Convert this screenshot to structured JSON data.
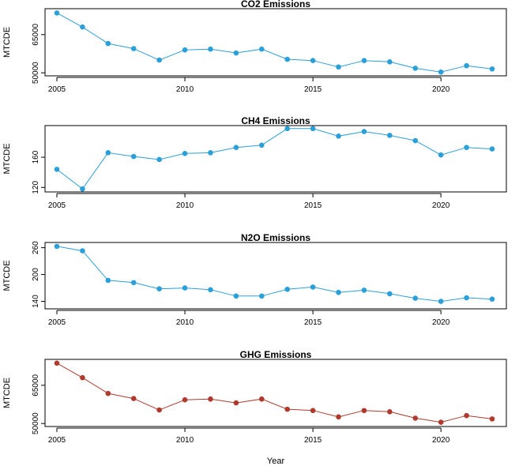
{
  "figure": {
    "xlabel": "Year"
  },
  "chart_data": [
    {
      "type": "line",
      "title": "CO2 Emissions",
      "xlabel": "",
      "ylabel": "MTCDE",
      "color": "#2b9fd8",
      "xlim": [
        2005,
        2022
      ],
      "ylim": [
        50000,
        74000
      ],
      "xticks": [
        2005,
        2010,
        2015,
        2020
      ],
      "yticks": [
        50000,
        65000
      ],
      "grid": false,
      "x": [
        2005,
        2006,
        2007,
        2008,
        2009,
        2010,
        2011,
        2012,
        2013,
        2014,
        2015,
        2016,
        2017,
        2018,
        2019,
        2020,
        2021,
        2022
      ],
      "values": [
        73500,
        68000,
        61500,
        59500,
        55000,
        59000,
        59300,
        57800,
        59300,
        55300,
        54800,
        52300,
        54800,
        54300,
        51800,
        50300,
        52800,
        51500
      ]
    },
    {
      "type": "line",
      "title": "CH4 Emissions",
      "xlabel": "",
      "ylabel": "MTCDE",
      "color": "#2b9fd8",
      "xlim": [
        2005,
        2022
      ],
      "ylim": [
        118,
        198
      ],
      "xticks": [
        2005,
        2010,
        2015,
        2020
      ],
      "yticks": [
        120,
        160
      ],
      "grid": false,
      "x": [
        2005,
        2006,
        2007,
        2008,
        2009,
        2010,
        2011,
        2012,
        2013,
        2014,
        2015,
        2016,
        2017,
        2018,
        2019,
        2020,
        2021,
        2022
      ],
      "values": [
        144,
        118,
        166,
        161,
        157,
        165,
        166,
        173,
        176,
        198,
        198,
        188,
        194,
        189,
        182,
        163,
        173,
        171
      ]
    },
    {
      "type": "line",
      "title": "N2O Emissions",
      "xlabel": "",
      "ylabel": "MTCDE",
      "color": "#2b9fd8",
      "xlim": [
        2005,
        2022
      ],
      "ylim": [
        130,
        265
      ],
      "xticks": [
        2005,
        2010,
        2015,
        2020
      ],
      "yticks": [
        140,
        200,
        260
      ],
      "grid": false,
      "x": [
        2005,
        2006,
        2007,
        2008,
        2009,
        2010,
        2011,
        2012,
        2013,
        2014,
        2015,
        2016,
        2017,
        2018,
        2019,
        2020,
        2021,
        2022
      ],
      "values": [
        263,
        253,
        187,
        182,
        168,
        170,
        166,
        152,
        152,
        167,
        172,
        160,
        165,
        157,
        147,
        140,
        148,
        145
      ]
    },
    {
      "type": "line",
      "title": "GHG Emissions",
      "xlabel": "",
      "ylabel": "MTCDE",
      "color": "#b03a2e",
      "xlim": [
        2005,
        2022
      ],
      "ylim": [
        50000,
        74000
      ],
      "xticks": [
        2005,
        2010,
        2015,
        2020
      ],
      "yticks": [
        50000,
        65000
      ],
      "grid": false,
      "x": [
        2005,
        2006,
        2007,
        2008,
        2009,
        2010,
        2011,
        2012,
        2013,
        2014,
        2015,
        2016,
        2017,
        2018,
        2019,
        2020,
        2021,
        2022
      ],
      "values": [
        73700,
        68000,
        61800,
        59800,
        55300,
        59300,
        59600,
        58100,
        59600,
        55600,
        55100,
        52600,
        55100,
        54600,
        52100,
        50500,
        53100,
        51800
      ]
    }
  ]
}
